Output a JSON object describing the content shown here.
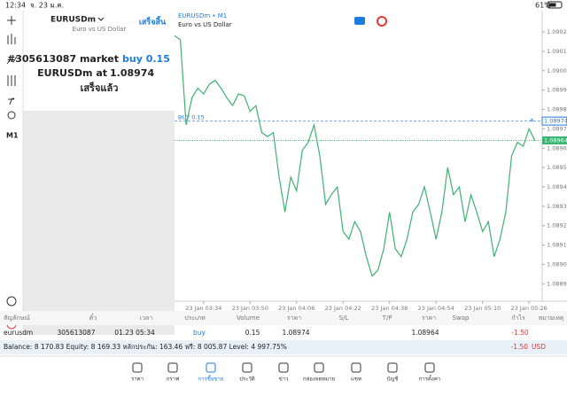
{
  "status_bar": {
    "time": "12:34",
    "date": "จ. 23 ม.ค.",
    "battery": "61%"
  },
  "toolbar": {
    "timeframe": "M1"
  },
  "symbol_panel": {
    "symbol": "EURUSDm",
    "description": "Euro vs US Dollar",
    "done_button": "เสร็จสิ้น"
  },
  "notification": {
    "order": "#305613087 market",
    "action": "buy 0.15",
    "fill": "EURUSDm at",
    "price": "1.08974",
    "status": "เสร็จแล้ว"
  },
  "chart_data": {
    "type": "line",
    "title": "EURUSDm • M1",
    "subtitle": "Euro vs US Dollar",
    "color": "#3cb371",
    "categories": [
      null,
      null,
      null,
      null,
      null,
      "23 Jan 03:34",
      null,
      null,
      null,
      null,
      null,
      null,
      null,
      "23 Jan 03:50",
      null,
      null,
      null,
      null,
      null,
      null,
      null,
      "23 Jan 04:06",
      null,
      null,
      null,
      null,
      null,
      null,
      null,
      "23 Jan 04:22",
      null,
      null,
      null,
      null,
      null,
      null,
      null,
      "23 Jan 04:38",
      null,
      null,
      null,
      null,
      null,
      null,
      null,
      "23 Jan 04:54",
      null,
      null,
      null,
      null,
      null,
      null,
      null,
      "23 Jan 05:10",
      null,
      null,
      null,
      null,
      null,
      null,
      null,
      "23 Jan 05:26",
      null
    ],
    "values": [
      1.09018,
      1.09016,
      1.08972,
      1.08986,
      1.08991,
      1.08988,
      1.08993,
      1.08995,
      1.08991,
      1.08986,
      1.08982,
      1.08988,
      1.08987,
      1.08979,
      1.08982,
      1.08968,
      1.08966,
      1.08968,
      1.08945,
      1.08927,
      1.08945,
      1.08938,
      1.08959,
      1.08963,
      1.08972,
      1.08956,
      1.08931,
      1.08936,
      1.0894,
      1.08917,
      1.08913,
      1.08922,
      1.08917,
      1.08904,
      1.08894,
      1.08897,
      1.08908,
      1.08927,
      1.08908,
      1.08904,
      1.08913,
      1.08927,
      1.08931,
      1.0894,
      1.08927,
      1.08913,
      1.08927,
      1.0895,
      1.08936,
      1.0894,
      1.08922,
      1.08936,
      1.08927,
      1.08917,
      1.08922,
      1.08904,
      1.08913,
      1.08927,
      1.08956,
      1.08963,
      1.08961,
      1.0897,
      1.08964
    ],
    "ylim": [
      1.08881,
      1.09031
    ],
    "yticks": [
      {
        "value": 1.0902,
        "label": "1.09020"
      },
      {
        "value": 1.0901,
        "label": "1.09010"
      },
      {
        "value": 1.09,
        "label": "1.09000"
      },
      {
        "value": 1.0899,
        "label": "1.08990"
      },
      {
        "value": 1.0898,
        "label": "1.08980"
      },
      {
        "value": 1.0897,
        "label": "1.08970"
      },
      {
        "value": 1.0896,
        "label": "1.08960"
      },
      {
        "value": 1.0895,
        "label": "1.08950"
      },
      {
        "value": 1.0894,
        "label": "1.08940"
      },
      {
        "value": 1.0893,
        "label": "1.08930"
      },
      {
        "value": 1.0892,
        "label": "1.08920"
      },
      {
        "value": 1.0891,
        "label": "1.08910"
      },
      {
        "value": 1.089,
        "label": "1.08900"
      },
      {
        "value": 1.0889,
        "label": "1.08890"
      }
    ],
    "order_line": {
      "label": "BUY 0.15",
      "value": 1.08974
    },
    "bid_line": 1.08964
  },
  "table": {
    "header": [
      "สัญลักษณ์",
      "ตั๋ว",
      "เวลา",
      "ประเภท",
      "Volume",
      "ราคา",
      "S/L",
      "T/P",
      "ราคา",
      "Swap",
      "กำไร",
      "หมายเหตุ"
    ],
    "row": [
      "eurusdm",
      "305613087",
      "01.23 05:34",
      "buy",
      "0.15",
      "1.08974",
      "1.08964",
      "-1.50"
    ]
  },
  "balance_bar": {
    "summary": "Balance: 8 170.83 Equity: 8 169.33 หลักประกัน: 163.46 ฟรี: 8 005.87 Level: 4 997.75%",
    "profit": "-1.50",
    "currency": "USD"
  },
  "tabs": [
    "ราคา",
    "กราฟ",
    "การซื้อขาย",
    "ประวัติ",
    "ข่าว",
    "กล่องจดหมาย",
    "แชท",
    "บัญชี",
    "การตั้งค่า"
  ]
}
